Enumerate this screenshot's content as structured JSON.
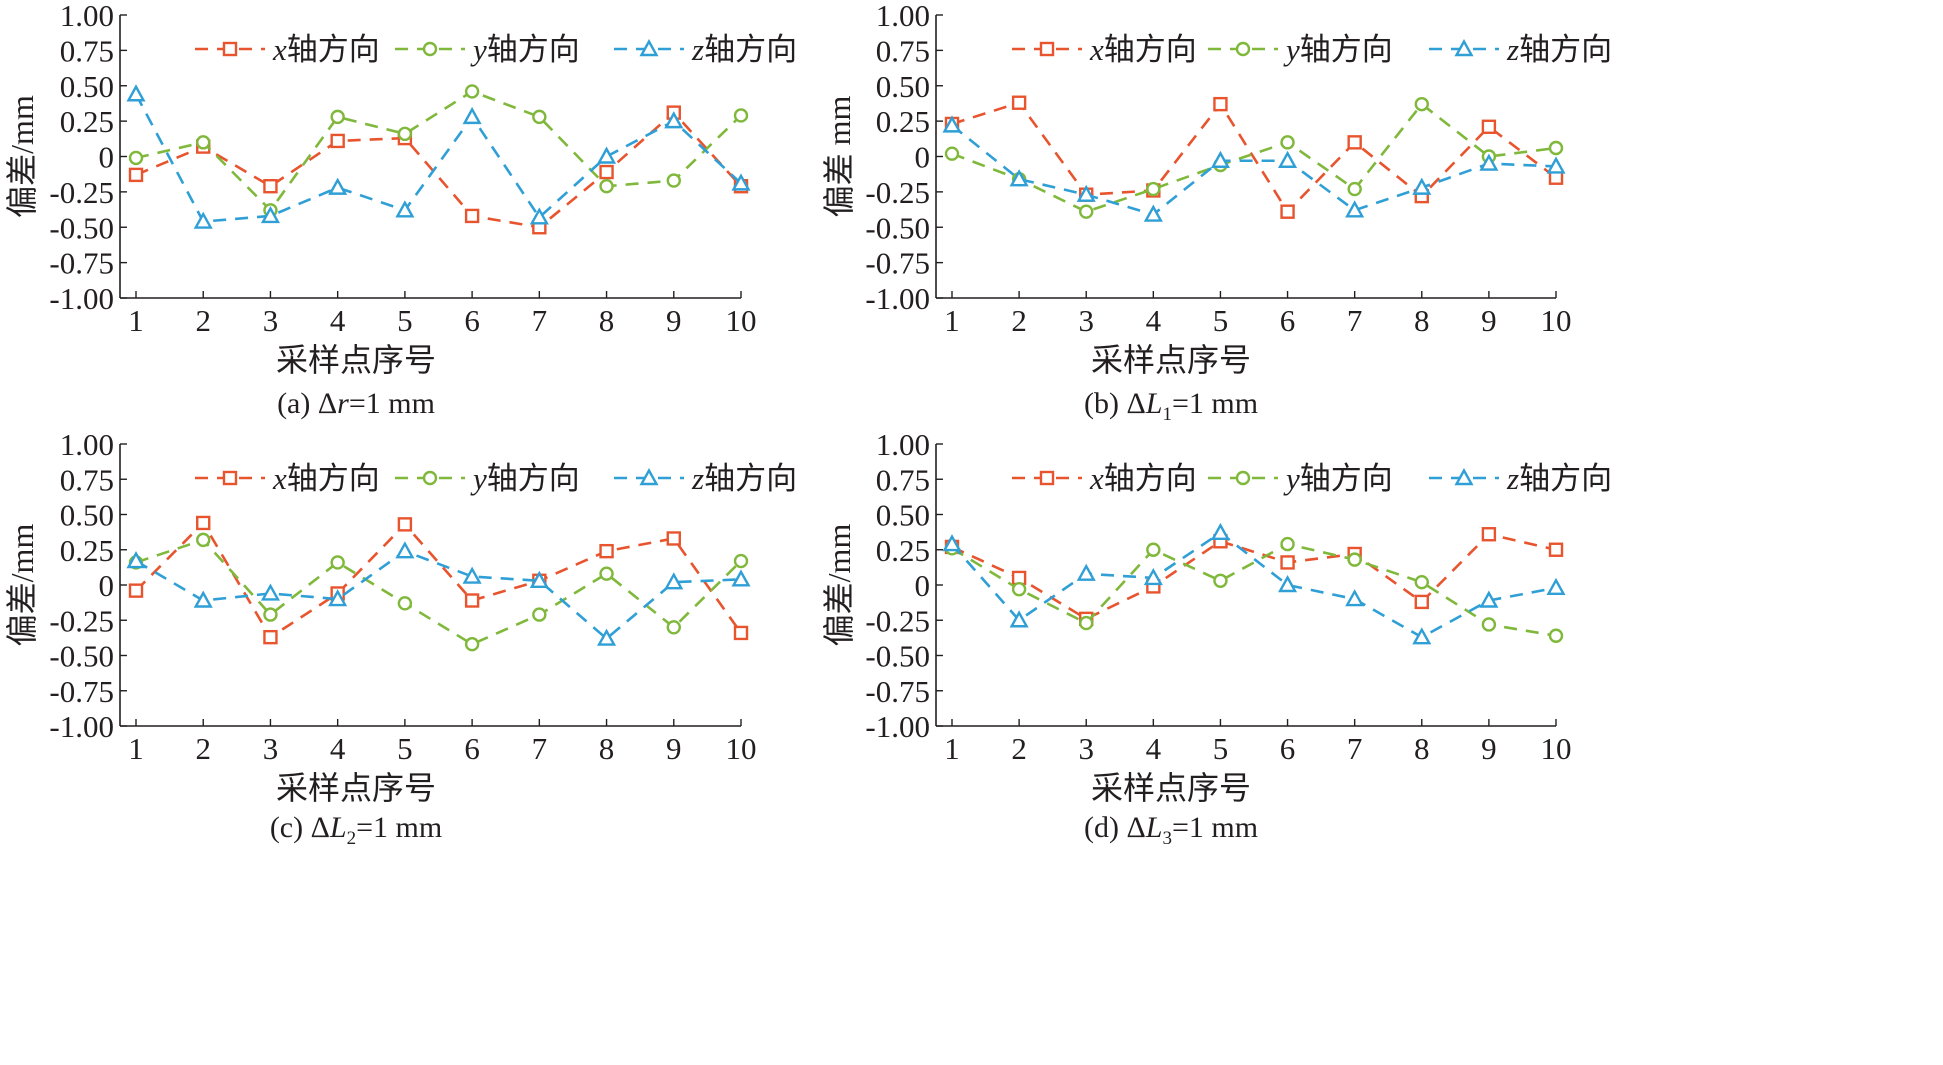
{
  "figure": {
    "colors": {
      "x": "#e8542e",
      "y": "#7fb83b",
      "z": "#2f9fd6",
      "axis": "#231f20"
    },
    "series_markers": {
      "x": "square",
      "y": "circle",
      "z": "triangle"
    }
  },
  "chart_data": [
    {
      "type": "line",
      "caption": {
        "prefix": "(a) Δ",
        "var": "r",
        "sub": "",
        "suffix": "=1 mm"
      },
      "xlabel": "采样点序号",
      "ylabel": "偏差/mm",
      "x": [
        1,
        2,
        3,
        4,
        5,
        6,
        7,
        8,
        9,
        10
      ],
      "ylim": [
        -1.0,
        1.0
      ],
      "yticks": [
        "1.00",
        "0.75",
        "0.50",
        "0.25",
        "0",
        "-0.25",
        "-0.50",
        "-0.75",
        "-1.00"
      ],
      "legend": {
        "position": "top"
      },
      "series": [
        {
          "key": "x",
          "name_var": "x",
          "name": "轴方向",
          "values": [
            -0.13,
            0.07,
            -0.21,
            0.11,
            0.13,
            -0.42,
            -0.5,
            -0.11,
            0.31,
            -0.21
          ]
        },
        {
          "key": "y",
          "name_var": "y",
          "name": "轴方向",
          "values": [
            -0.01,
            0.1,
            -0.38,
            0.28,
            0.16,
            0.46,
            0.28,
            -0.21,
            -0.17,
            0.29
          ]
        },
        {
          "key": "z",
          "name_var": "z",
          "name": "轴方向",
          "values": [
            0.44,
            -0.46,
            -0.42,
            -0.22,
            -0.38,
            0.28,
            -0.43,
            0.0,
            0.25,
            -0.19
          ]
        }
      ]
    },
    {
      "type": "line",
      "caption": {
        "prefix": "(b) Δ",
        "var": "L",
        "sub": "1",
        "suffix": "=1 mm"
      },
      "xlabel": "采样点序号",
      "ylabel": "偏差 mm",
      "x": [
        1,
        2,
        3,
        4,
        5,
        6,
        7,
        8,
        9,
        10
      ],
      "ylim": [
        -1.0,
        1.0
      ],
      "yticks": [
        "1.00",
        "0.75",
        "0.50",
        "0.25",
        "0",
        "-0.25",
        "-0.50",
        "-0.75",
        "-1.00"
      ],
      "legend": {
        "position": "top"
      },
      "series": [
        {
          "key": "x",
          "name_var": "x",
          "name": "轴方向",
          "values": [
            0.23,
            0.38,
            -0.27,
            -0.24,
            0.37,
            -0.39,
            0.1,
            -0.28,
            0.21,
            -0.15
          ]
        },
        {
          "key": "y",
          "name_var": "y",
          "name": "轴方向",
          "values": [
            0.02,
            -0.16,
            -0.39,
            -0.23,
            -0.06,
            0.1,
            -0.23,
            0.37,
            0.0,
            0.06
          ]
        },
        {
          "key": "z",
          "name_var": "z",
          "name": "轴方向",
          "values": [
            0.22,
            -0.16,
            -0.27,
            -0.41,
            -0.03,
            -0.03,
            -0.38,
            -0.22,
            -0.05,
            -0.07
          ]
        }
      ]
    },
    {
      "type": "line",
      "caption": {
        "prefix": "(c) Δ",
        "var": "L",
        "sub": "2",
        "suffix": "=1 mm"
      },
      "xlabel": "采样点序号",
      "ylabel": "偏差/mm",
      "x": [
        1,
        2,
        3,
        4,
        5,
        6,
        7,
        8,
        9,
        10
      ],
      "ylim": [
        -1.0,
        1.0
      ],
      "yticks": [
        "1.00",
        "0.75",
        "0.50",
        "0.25",
        "0",
        "-0.25",
        "-0.50",
        "-0.75",
        "-1.00"
      ],
      "legend": {
        "position": "top"
      },
      "series": [
        {
          "key": "x",
          "name_var": "x",
          "name": "轴方向",
          "values": [
            -0.04,
            0.44,
            -0.37,
            -0.06,
            0.43,
            -0.11,
            0.03,
            0.24,
            0.33,
            -0.34
          ]
        },
        {
          "key": "y",
          "name_var": "y",
          "name": "轴方向",
          "values": [
            0.16,
            0.32,
            -0.21,
            0.16,
            -0.13,
            -0.42,
            -0.21,
            0.08,
            -0.3,
            0.17
          ]
        },
        {
          "key": "z",
          "name_var": "z",
          "name": "轴方向",
          "values": [
            0.17,
            -0.11,
            -0.06,
            -0.1,
            0.24,
            0.06,
            0.03,
            -0.38,
            0.02,
            0.04
          ]
        }
      ]
    },
    {
      "type": "line",
      "caption": {
        "prefix": "(d) Δ",
        "var": "L",
        "sub": "3",
        "suffix": "=1 mm"
      },
      "xlabel": "采样点序号",
      "ylabel": "偏差/mm",
      "x": [
        1,
        2,
        3,
        4,
        5,
        6,
        7,
        8,
        9,
        10
      ],
      "ylim": [
        -1.0,
        1.0
      ],
      "yticks": [
        "1.00",
        "0.75",
        "0.50",
        "0.25",
        "0",
        "-0.25",
        "-0.50",
        "-0.75",
        "-1.00"
      ],
      "legend": {
        "position": "top"
      },
      "series": [
        {
          "key": "x",
          "name_var": "x",
          "name": "轴方向",
          "values": [
            0.27,
            0.05,
            -0.24,
            -0.01,
            0.31,
            0.16,
            0.22,
            -0.12,
            0.36,
            0.25
          ]
        },
        {
          "key": "y",
          "name_var": "y",
          "name": "轴方向",
          "values": [
            0.26,
            -0.03,
            -0.27,
            0.25,
            0.03,
            0.29,
            0.18,
            0.02,
            -0.28,
            -0.36
          ]
        },
        {
          "key": "z",
          "name_var": "z",
          "name": "轴方向",
          "values": [
            0.29,
            -0.25,
            0.08,
            0.05,
            0.37,
            0.0,
            -0.1,
            -0.37,
            -0.11,
            -0.02
          ]
        }
      ]
    }
  ]
}
